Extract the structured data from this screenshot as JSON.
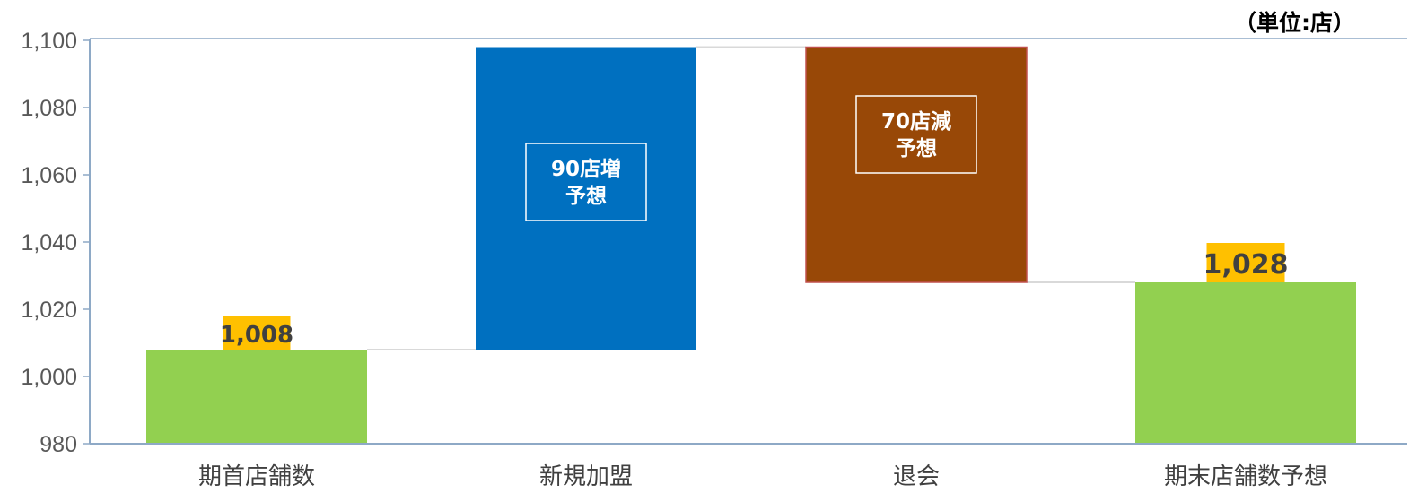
{
  "chart_data": {
    "type": "waterfall",
    "unit_label": "（単位:店）",
    "y_axis": {
      "min": 980,
      "max": 1100,
      "step": 20,
      "tick_labels": [
        "980",
        "1,000",
        "1,020",
        "1,040",
        "1,060",
        "1,080",
        "1,100"
      ]
    },
    "categories": [
      "期首店舗数",
      "新規加盟",
      "退会",
      "期末店舗数予想"
    ],
    "bars": [
      {
        "kind": "total",
        "start": 980,
        "end": 1008,
        "color": "#92D050",
        "value_label": "1,008",
        "label_bg": "#FFC000"
      },
      {
        "kind": "increase",
        "start": 1008,
        "end": 1098,
        "color": "#0070C0",
        "callout": [
          "90店増",
          "予想"
        ]
      },
      {
        "kind": "decrease",
        "start": 1028,
        "end": 1098,
        "color": "#984807",
        "callout": [
          "70店減",
          "予想"
        ]
      },
      {
        "kind": "total",
        "start": 980,
        "end": 1028,
        "color": "#92D050",
        "value_label": "1,028",
        "label_bg": "#FFC000"
      }
    ],
    "grid": false,
    "connector_lines": true,
    "colors": {
      "axis": "#8EA9C6",
      "connector": "#D9D9D9",
      "total": "#92D050",
      "increase": "#0070C0",
      "decrease": "#984807",
      "label_highlight": "#FFC000"
    }
  }
}
